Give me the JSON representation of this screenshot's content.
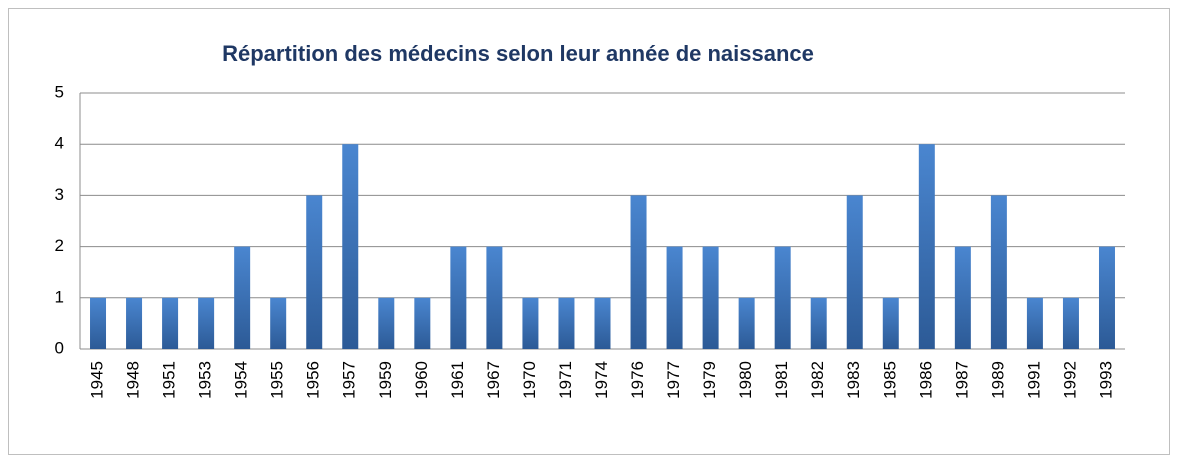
{
  "chart_data": {
    "type": "bar",
    "title": "Répartition des médecins selon leur année de naissance",
    "categories": [
      "1945",
      "1948",
      "1951",
      "1953",
      "1954",
      "1955",
      "1956",
      "1957",
      "1959",
      "1960",
      "1961",
      "1967",
      "1970",
      "1971",
      "1974",
      "1976",
      "1977",
      "1979",
      "1980",
      "1981",
      "1982",
      "1983",
      "1985",
      "1986",
      "1987",
      "1989",
      "1991",
      "1992",
      "1993"
    ],
    "values": [
      1,
      1,
      1,
      1,
      2,
      1,
      3,
      4,
      1,
      1,
      2,
      2,
      1,
      1,
      1,
      3,
      2,
      2,
      1,
      2,
      1,
      3,
      1,
      4,
      2,
      3,
      1,
      1,
      2
    ],
    "color": "#4a86d0",
    "ylim": [
      0,
      5
    ],
    "yticks": [
      0,
      1,
      2,
      3,
      4,
      5
    ],
    "grid": true
  }
}
